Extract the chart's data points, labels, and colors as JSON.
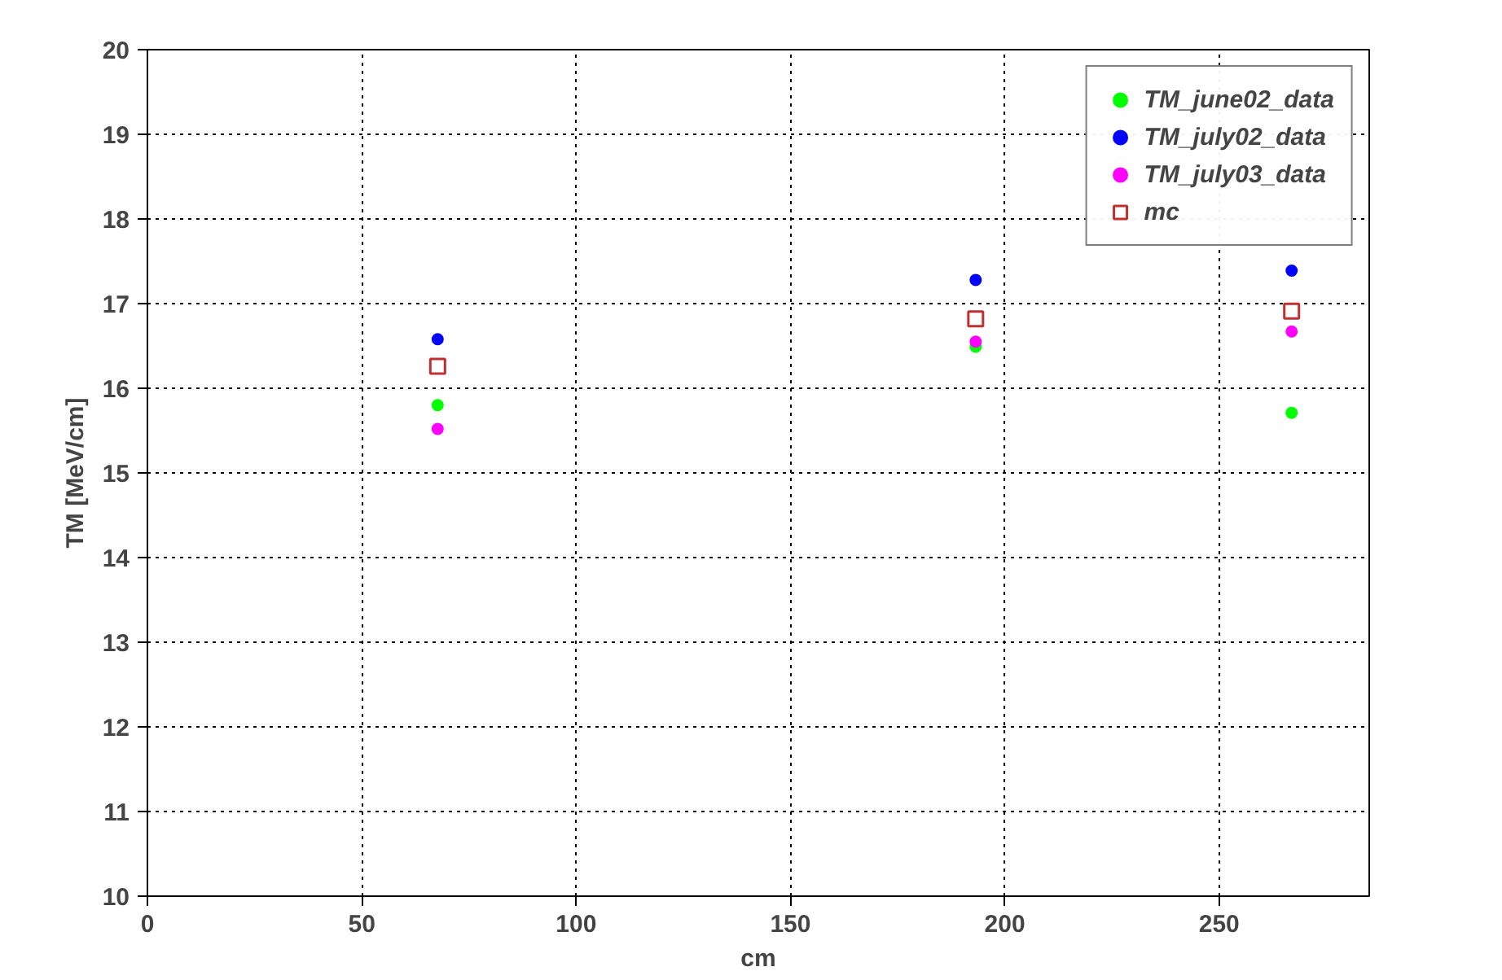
{
  "chart_data": {
    "type": "scatter",
    "xlabel": "cm",
    "ylabel": "TM [MeV/cm]",
    "xlim": [
      0,
      285
    ],
    "xticks": [
      0,
      50,
      100,
      150,
      200,
      250
    ],
    "ylim": [
      10,
      20
    ],
    "yticks": [
      10,
      11,
      12,
      13,
      14,
      15,
      16,
      17,
      18,
      19,
      20
    ],
    "grid": true,
    "legend": "top right",
    "x": [
      67.7,
      193.2,
      266.9
    ],
    "series": [
      {
        "name": "TM_june02_data",
        "color": "#00ff00",
        "marker": "circle",
        "values": [
          15.8,
          16.49,
          15.71
        ]
      },
      {
        "name": "TM_july02_data",
        "color": "#0000ff",
        "marker": "circle",
        "values": [
          16.58,
          17.28,
          17.39
        ]
      },
      {
        "name": "TM_july03_data",
        "color": "#ff00ff",
        "marker": "circle",
        "values": [
          15.52,
          16.55,
          16.67
        ]
      },
      {
        "name": "mc",
        "color": "#c03030",
        "marker": "square",
        "values": [
          16.26,
          16.82,
          16.91
        ]
      }
    ]
  }
}
